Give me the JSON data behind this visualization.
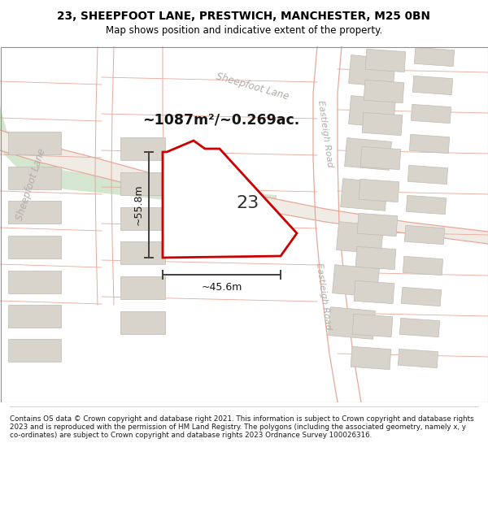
{
  "title_line1": "23, SHEEPFOOT LANE, PRESTWICH, MANCHESTER, M25 0BN",
  "title_line2": "Map shows position and indicative extent of the property.",
  "area_label": "~1087m²/~0.269ac.",
  "plot_number": "23",
  "dim_height": "~55.8m",
  "dim_width": "~45.6m",
  "street_diag": "Sheepfoot Lane",
  "street_top": "Sheepfoot Lane",
  "street_right1": "Eastleigh Road",
  "street_right2": "Eastleigh Road",
  "footer_text": "Contains OS data © Crown copyright and database right 2021. This information is subject to Crown copyright and database rights 2023 and is reproduced with the permission of HM Land Registry. The polygons (including the associated geometry, namely x, y co-ordinates) are subject to Crown copyright and database rights 2023 Ordnance Survey 100026316.",
  "map_bg": "#f5f2ee",
  "green_color": "#d4e6d0",
  "road_line_color": "#e8a898",
  "road_fill_color": "#f0ebe4",
  "building_fill": "#d8d4cc",
  "building_edge": "#c0bbb4",
  "plot_fill": "#ffffff",
  "plot_edge": "#cc0000",
  "dim_color": "#404040",
  "label_color": "#151515",
  "street_color": "#b0aca8"
}
